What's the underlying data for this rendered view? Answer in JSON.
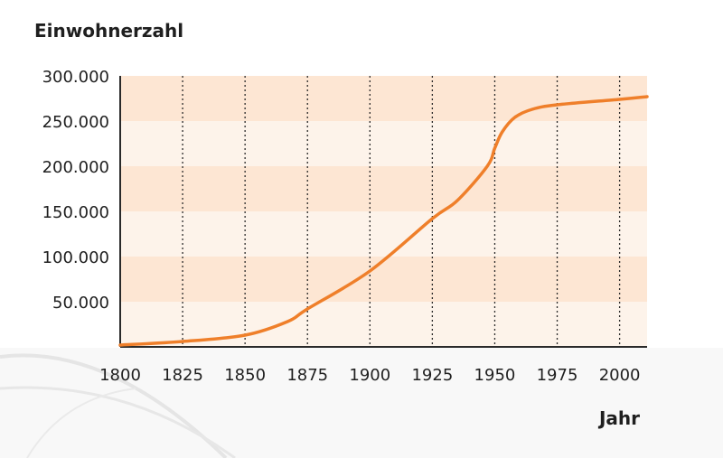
{
  "chart_data": {
    "type": "line",
    "ylabel": "Einwohnerzahl",
    "xlabel": "Jahr",
    "xlim": [
      1800,
      2011
    ],
    "ylim": [
      0,
      300000
    ],
    "x_ticks": [
      1800,
      1825,
      1850,
      1875,
      1900,
      1925,
      1950,
      1975,
      2000
    ],
    "x_tick_labels": [
      "1800",
      "1825",
      "1850",
      "1875",
      "1900",
      "1925",
      "1950",
      "1975",
      "2000"
    ],
    "y_ticks": [
      50000,
      100000,
      150000,
      200000,
      250000,
      300000
    ],
    "y_tick_labels": [
      "50.000",
      "100.000",
      "150.000",
      "200.000",
      "250.000",
      "300.000"
    ],
    "grid": "vertical dotted lines at x ticks",
    "band_colors": [
      "#fde6d3",
      "#fdf3ea"
    ],
    "axis_color": "#2a2a2a",
    "line_color": "#ef7f2a",
    "series": [
      {
        "x": [
          1800,
          1825,
          1850,
          1867,
          1875,
          1900,
          1925,
          1935,
          1947,
          1950,
          1953,
          1958,
          1965,
          1975,
          2000,
          2011
        ],
        "values": [
          2000,
          6000,
          13000,
          28000,
          42000,
          84000,
          142000,
          162000,
          200000,
          220000,
          238000,
          254000,
          263000,
          268000,
          274000,
          277000
        ]
      }
    ]
  }
}
